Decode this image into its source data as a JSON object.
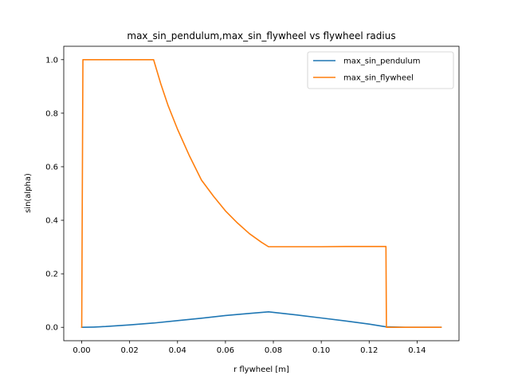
{
  "chart_data": {
    "type": "line",
    "title": "max_sin_pendulum,max_sin_flywheel vs flywheel radius",
    "xlabel": "r flywheel [m]",
    "ylabel": "sin(alpha)",
    "xlim": [
      -0.0075,
      0.1575
    ],
    "ylim": [
      -0.05,
      1.05
    ],
    "xticks": [
      0.0,
      0.02,
      0.04,
      0.06,
      0.08,
      0.1,
      0.12,
      0.14
    ],
    "xtick_labels": [
      "0.00",
      "0.02",
      "0.04",
      "0.06",
      "0.08",
      "0.10",
      "0.12",
      "0.14"
    ],
    "yticks": [
      0.0,
      0.2,
      0.4,
      0.6,
      0.8,
      1.0
    ],
    "ytick_labels": [
      "0.0",
      "0.2",
      "0.4",
      "0.6",
      "0.8",
      "1.0"
    ],
    "grid": false,
    "legend_position": "top-right",
    "series": [
      {
        "name": "max_sin_pendulum",
        "color": "#1f77b4",
        "x": [
          0.0,
          0.005,
          0.01,
          0.015,
          0.02,
          0.03,
          0.04,
          0.05,
          0.06,
          0.07,
          0.078,
          0.09,
          0.1,
          0.11,
          0.12,
          0.127,
          0.135,
          0.15
        ],
        "y": [
          0.0,
          0.001,
          0.003,
          0.006,
          0.009,
          0.016,
          0.025,
          0.034,
          0.044,
          0.052,
          0.058,
          0.046,
          0.035,
          0.024,
          0.012,
          0.002,
          0.0,
          0.0
        ]
      },
      {
        "name": "max_sin_flywheel",
        "color": "#ff7f0e",
        "x": [
          0.0,
          0.0005,
          0.005,
          0.01,
          0.02,
          0.03,
          0.033,
          0.036,
          0.04,
          0.045,
          0.05,
          0.055,
          0.06,
          0.065,
          0.07,
          0.075,
          0.078,
          0.09,
          0.1,
          0.11,
          0.12,
          0.127,
          0.1272,
          0.135,
          0.15
        ],
        "y": [
          0.0,
          1.0,
          1.0,
          1.0,
          1.0,
          1.0,
          0.91,
          0.83,
          0.74,
          0.64,
          0.55,
          0.49,
          0.435,
          0.39,
          0.35,
          0.318,
          0.301,
          0.301,
          0.301,
          0.302,
          0.302,
          0.302,
          0.0,
          0.0,
          0.0
        ]
      }
    ]
  }
}
